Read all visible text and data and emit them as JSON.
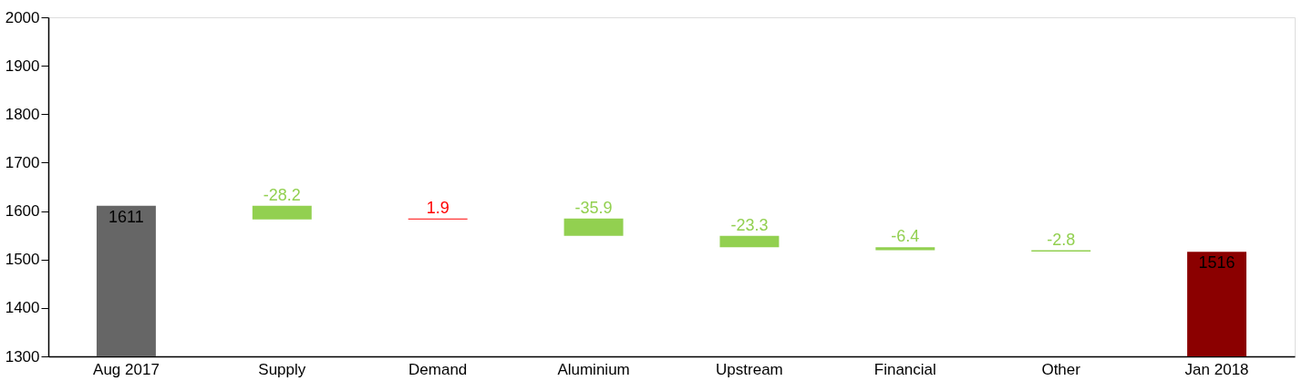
{
  "chart_data": {
    "type": "bar",
    "categories": [
      "Aug 2017",
      "Supply",
      "Demand",
      "Aluminium",
      "Upstream",
      "Financial",
      "Other",
      "Jan 2018"
    ],
    "values": [
      1611,
      -28.2,
      1.9,
      -35.9,
      -23.3,
      -6.4,
      -2.8,
      1516
    ],
    "base": [
      null,
      1611,
      1582.8,
      1584.7,
      1548.8,
      1525.5,
      1519.1,
      null
    ],
    "colors": [
      "#666666",
      "#92d050",
      "#ff0000",
      "#92d050",
      "#92d050",
      "#92d050",
      "#92d050",
      "#8b0000"
    ],
    "data_labels": true,
    "ylim": [
      1300,
      2000
    ],
    "yticks": [
      1300,
      1400,
      1500,
      1600,
      1700,
      1800,
      1900,
      2000
    ],
    "grid": false
  }
}
